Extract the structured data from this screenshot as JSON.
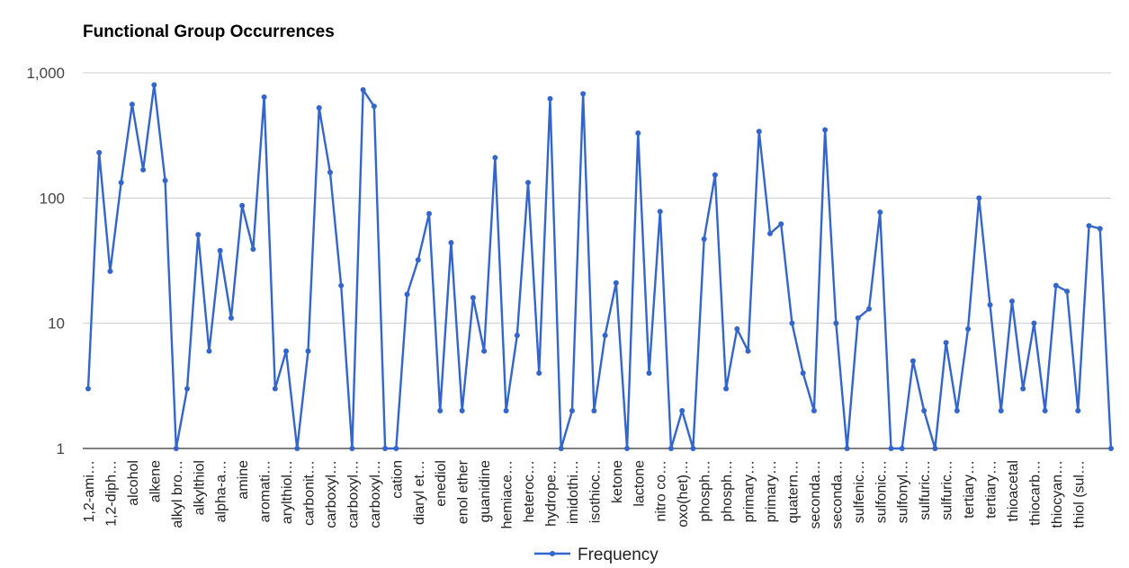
{
  "chart_data": {
    "type": "line",
    "title": "Functional Group Occurrences",
    "y_scale": "log",
    "ylim": [
      1,
      1000
    ],
    "yticks": [
      1,
      10,
      100,
      1000
    ],
    "ytick_labels": [
      "1",
      "10",
      "100",
      "1,000"
    ],
    "grid": true,
    "legend": "bottom",
    "colors": {
      "series": "#3366cc",
      "grid": "#cccccc",
      "axis": "#333333"
    },
    "x_labels_shown": [
      "1,2-ami…",
      "1,2-diph…",
      "alcohol",
      "alkene",
      "alkyl bro…",
      "alkylthiol",
      "alpha-a…",
      "amine",
      "aromati…",
      "arylthiol…",
      "carbonit…",
      "carboxyl…",
      "carboxyl…",
      "carboxyl…",
      "cation",
      "diaryl et…",
      "enediol",
      "enol ether",
      "guanidine",
      "hemiace…",
      "heteroc…",
      "hydrope…",
      "imidothi…",
      "isothioc…",
      "ketone",
      "lactone",
      "nitro co…",
      "oxo(het)…",
      "phosph…",
      "phosph…",
      "primary…",
      "primary…",
      "quatern…",
      "seconda…",
      "seconda…",
      "sulfenic…",
      "sulfonic…",
      "sulfonyl…",
      "sulfuric…",
      "sulfuric…",
      "tertiary…",
      "tertiary…",
      "thioacetal",
      "thiocarb…",
      "thiocyan…",
      "thiol (sul…"
    ],
    "series": [
      {
        "name": "Frequency",
        "values": [
          3,
          230,
          26,
          133,
          560,
          168,
          800,
          138,
          1,
          3,
          51,
          6,
          38,
          11,
          87,
          39,
          640,
          3,
          6,
          1,
          6,
          525,
          160,
          20,
          1,
          730,
          540,
          1,
          1,
          17,
          32,
          75,
          2,
          44,
          2,
          16,
          6,
          210,
          2,
          8,
          133,
          4,
          620,
          1,
          2,
          680,
          2,
          8,
          21,
          1,
          330,
          4,
          78,
          1,
          2,
          1,
          47,
          153,
          3,
          9,
          6,
          340,
          52,
          62,
          10,
          4,
          2,
          350,
          10,
          1,
          11,
          13,
          77,
          1,
          1,
          5,
          2,
          1,
          7,
          2,
          9,
          100,
          14,
          2,
          15,
          3,
          10,
          2,
          20,
          18,
          2,
          60,
          57,
          1
        ]
      }
    ]
  }
}
